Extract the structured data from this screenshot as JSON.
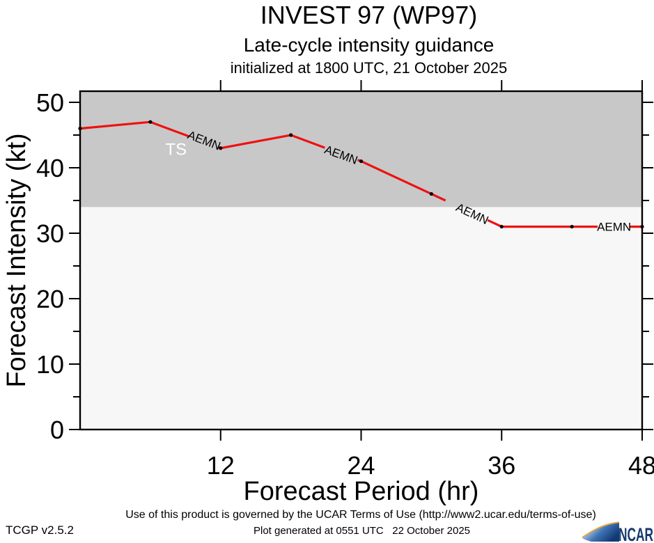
{
  "chart_data": {
    "type": "line",
    "title": "INVEST 97 (WP97)",
    "subtitle": "Late-cycle intensity guidance",
    "initialized": "initialized at 1800 UTC, 21 October 2025",
    "xlabel": "Forecast Period (hr)",
    "ylabel": "Forecast Intensity (kt)",
    "x": [
      0,
      6,
      12,
      18,
      24,
      30,
      36,
      42,
      48
    ],
    "series": [
      {
        "name": "AEMN",
        "color": "#ee1111",
        "values": [
          46,
          47,
          43,
          45,
          41,
          36,
          31,
          31,
          31
        ]
      }
    ],
    "xlim": [
      0,
      48
    ],
    "ylim": [
      0,
      51.7
    ],
    "xticks": [
      12,
      24,
      36,
      48
    ],
    "yticks": [
      0,
      10,
      20,
      30,
      40,
      50
    ],
    "yticks_minor": [
      5,
      15,
      25,
      35,
      45
    ],
    "grid": false,
    "legend": "none",
    "marker_color": "#000000",
    "ts_band": {
      "label": "TS",
      "threshold_kt": 34,
      "band_color": "#c8c8c8",
      "below_color": "#f7f7f7",
      "label_color": "#ffffff",
      "label_pos_hr": 8.2,
      "label_pos_kt": 42.8
    },
    "line_labels": [
      {
        "text": "AEMN",
        "hr": 10.6,
        "kt": 44.2,
        "angle_deg": 21,
        "gap_hr": [
          9.3,
          11.75
        ]
      },
      {
        "text": "AEMN",
        "hr": 22.3,
        "kt": 42.0,
        "angle_deg": 20,
        "gap_hr": [
          20.9,
          23.7
        ]
      },
      {
        "text": "AEMN",
        "hr": 33.5,
        "kt": 33.0,
        "angle_deg": 25,
        "gap_hr": [
          31.2,
          34.8
        ]
      },
      {
        "text": "AEMN",
        "hr": 45.6,
        "kt": 31.0,
        "angle_deg": 0,
        "gap_hr": [
          44.2,
          46.9
        ]
      }
    ]
  },
  "footer": {
    "terms": "Use of this product is governed by the UCAR Terms of Use (http://www2.ucar.edu/terms-of-use)",
    "generated": "Plot generated at 0551 UTC   22 October 2025",
    "version": "TCGP v2.5.2",
    "logo_text": "NCAR",
    "logo_navy": "#16396f",
    "logo_orange": "#eb9f3e"
  }
}
